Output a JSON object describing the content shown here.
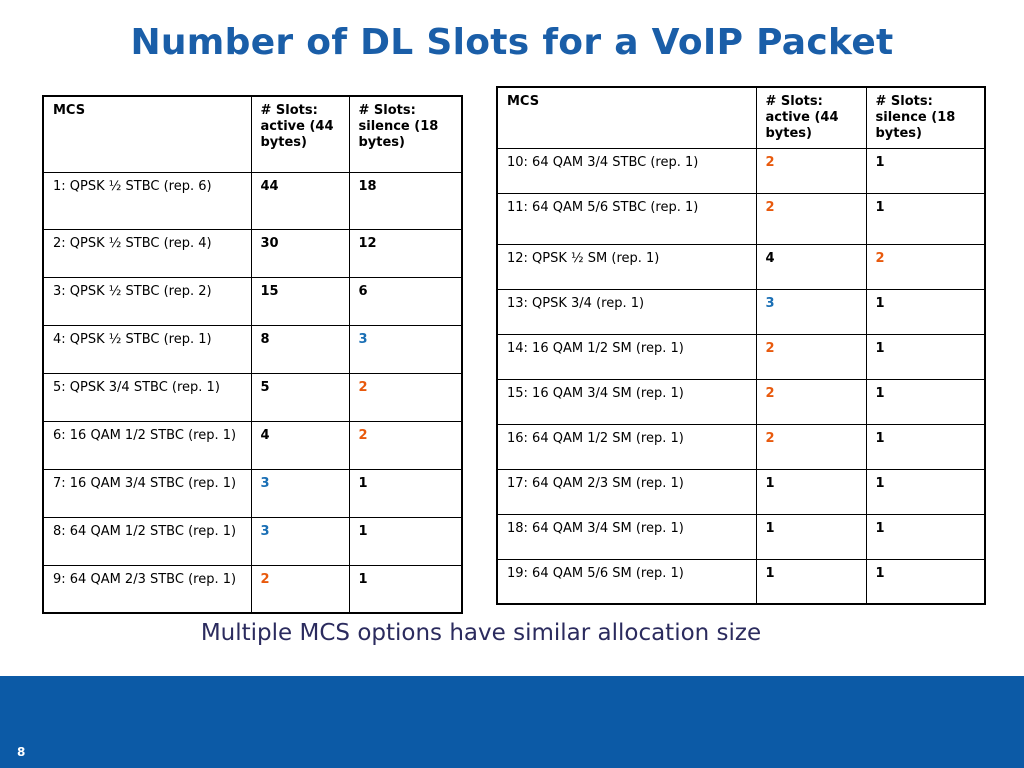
{
  "slide": {
    "title": "Number of DL Slots for a VoIP Packet",
    "caption": "Multiple MCS options have similar allocation size",
    "page_number": "8"
  },
  "colors": {
    "title": "#1a5ea8",
    "footer": "#0c5aa6",
    "orange": "#e8590c",
    "blue": "#1a6fb5",
    "black": "#000000"
  },
  "tables": {
    "left": {
      "headers": [
        "MCS",
        "# Slots: active (44 bytes)",
        "# Slots: silence (18 bytes)"
      ],
      "rows": [
        {
          "mcs": "1: QPSK ½ STBC (rep. 6)",
          "active": "44",
          "silence": "18",
          "active_color": "black",
          "silence_color": "black"
        },
        {
          "mcs": "2: QPSK ½ STBC (rep. 4)",
          "active": "30",
          "silence": "12",
          "active_color": "black",
          "silence_color": "black"
        },
        {
          "mcs": "3: QPSK ½ STBC (rep. 2)",
          "active": "15",
          "silence": "6",
          "active_color": "black",
          "silence_color": "black"
        },
        {
          "mcs": "4: QPSK ½ STBC (rep. 1)",
          "active": "8",
          "silence": "3",
          "active_color": "black",
          "silence_color": "blue"
        },
        {
          "mcs": "5: QPSK 3/4 STBC (rep. 1)",
          "active": "5",
          "silence": "2",
          "active_color": "black",
          "silence_color": "orange"
        },
        {
          "mcs": "6: 16 QAM 1/2 STBC (rep. 1)",
          "active": "4",
          "silence": "2",
          "active_color": "black",
          "silence_color": "orange"
        },
        {
          "mcs": "7: 16 QAM 3/4 STBC (rep. 1)",
          "active": "3",
          "silence": "1",
          "active_color": "blue",
          "silence_color": "black"
        },
        {
          "mcs": "8: 64 QAM 1/2 STBC (rep. 1)",
          "active": "3",
          "silence": "1",
          "active_color": "blue",
          "silence_color": "black"
        },
        {
          "mcs": "9: 64 QAM 2/3 STBC (rep. 1)",
          "active": "2",
          "silence": "1",
          "active_color": "orange",
          "silence_color": "black"
        }
      ]
    },
    "right": {
      "headers": [
        "MCS",
        "# Slots: active (44 bytes)",
        "# Slots: silence (18 bytes)"
      ],
      "rows": [
        {
          "mcs": "10: 64 QAM 3/4 STBC (rep. 1)",
          "active": "2",
          "silence": "1",
          "active_color": "orange",
          "silence_color": "black"
        },
        {
          "mcs": "11: 64 QAM 5/6 STBC (rep. 1)",
          "active": "2",
          "silence": "1",
          "active_color": "orange",
          "silence_color": "black"
        },
        {
          "mcs": "12: QPSK ½ SM (rep. 1)",
          "active": "4",
          "silence": "2",
          "active_color": "black",
          "silence_color": "orange"
        },
        {
          "mcs": "13: QPSK 3/4 (rep. 1)",
          "active": "3",
          "silence": "1",
          "active_color": "blue",
          "silence_color": "black"
        },
        {
          "mcs": "14: 16 QAM 1/2 SM (rep. 1)",
          "active": "2",
          "silence": "1",
          "active_color": "orange",
          "silence_color": "black"
        },
        {
          "mcs": "15: 16 QAM 3/4 SM (rep. 1)",
          "active": "2",
          "silence": "1",
          "active_color": "orange",
          "silence_color": "black"
        },
        {
          "mcs": "16: 64 QAM 1/2 SM (rep. 1)",
          "active": "2",
          "silence": "1",
          "active_color": "orange",
          "silence_color": "black"
        },
        {
          "mcs": "17: 64 QAM 2/3 SM (rep. 1)",
          "active": "1",
          "silence": "1",
          "active_color": "black",
          "silence_color": "black"
        },
        {
          "mcs": "18: 64 QAM 3/4 SM (rep. 1)",
          "active": "1",
          "silence": "1",
          "active_color": "black",
          "silence_color": "black"
        },
        {
          "mcs": "19: 64 QAM 5/6 SM (rep. 1)",
          "active": "1",
          "silence": "1",
          "active_color": "black",
          "silence_color": "black"
        }
      ]
    }
  }
}
